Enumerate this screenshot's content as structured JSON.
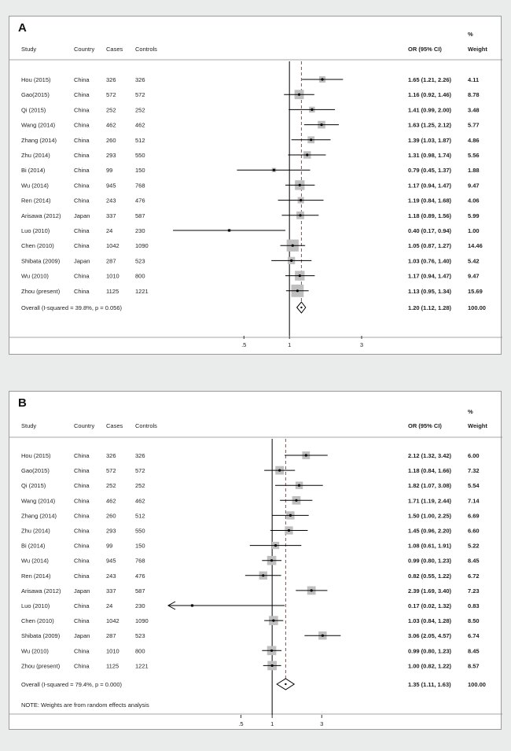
{
  "colors": {
    "box": "#bfbfbf",
    "line": "#000000",
    "null_line": "#000000",
    "pooled_line": "#c0392b",
    "text": "#222222"
  },
  "chart_data": [
    {
      "type": "forest",
      "panel_label": "A",
      "headers": {
        "study": "Study",
        "country": "Country",
        "cases": "Cases",
        "controls": "Controls",
        "or": "OR (95% CI)",
        "pct": "%",
        "weight": "Weight"
      },
      "x_scale": "log",
      "xlim": [
        0.16,
        4.4
      ],
      "ticks": [
        {
          "value": 0.5,
          "label": ".5"
        },
        {
          "value": 1,
          "label": "1"
        },
        {
          "value": 3,
          "label": "3"
        }
      ],
      "pooled_or": 1.2,
      "studies": [
        {
          "study": "Hou (2015)",
          "country": "China",
          "cases": "326",
          "controls": "326",
          "or": 1.65,
          "lo": 1.21,
          "hi": 2.26,
          "ci_text": "1.65 (1.21, 2.26)",
          "weight": "4.11"
        },
        {
          "study": "Gao(2015)",
          "country": "China",
          "cases": "572",
          "controls": "572",
          "or": 1.16,
          "lo": 0.92,
          "hi": 1.46,
          "ci_text": "1.16 (0.92, 1.46)",
          "weight": "8.78"
        },
        {
          "study": "Qi (2015)",
          "country": "China",
          "cases": "252",
          "controls": "252",
          "or": 1.41,
          "lo": 0.99,
          "hi": 2.0,
          "ci_text": "1.41 (0.99, 2.00)",
          "weight": "3.48"
        },
        {
          "study": "Wang (2014)",
          "country": "China",
          "cases": "462",
          "controls": "462",
          "or": 1.63,
          "lo": 1.25,
          "hi": 2.12,
          "ci_text": "1.63 (1.25, 2.12)",
          "weight": "5.77"
        },
        {
          "study": "Zhang (2014)",
          "country": "China",
          "cases": "260",
          "controls": "512",
          "or": 1.39,
          "lo": 1.03,
          "hi": 1.87,
          "ci_text": "1.39 (1.03, 1.87)",
          "weight": "4.86"
        },
        {
          "study": "Zhu (2014)",
          "country": "China",
          "cases": "293",
          "controls": "550",
          "or": 1.31,
          "lo": 0.98,
          "hi": 1.74,
          "ci_text": "1.31 (0.98, 1.74)",
          "weight": "5.56"
        },
        {
          "study": "Bi (2014)",
          "country": "China",
          "cases": "99",
          "controls": "150",
          "or": 0.79,
          "lo": 0.45,
          "hi": 1.37,
          "ci_text": "0.79 (0.45, 1.37)",
          "weight": "1.88"
        },
        {
          "study": "Wu (2014)",
          "country": "China",
          "cases": "945",
          "controls": "768",
          "or": 1.17,
          "lo": 0.94,
          "hi": 1.47,
          "ci_text": "1.17 (0.94, 1.47)",
          "weight": "9.47"
        },
        {
          "study": "Ren (2014)",
          "country": "China",
          "cases": "243",
          "controls": "476",
          "or": 1.19,
          "lo": 0.84,
          "hi": 1.68,
          "ci_text": "1.19 (0.84, 1.68)",
          "weight": "4.06"
        },
        {
          "study": "Arisawa (2012)",
          "country": "Japan",
          "cases": "337",
          "controls": "587",
          "or": 1.18,
          "lo": 0.89,
          "hi": 1.56,
          "ci_text": "1.18 (0.89, 1.56)",
          "weight": "5.99"
        },
        {
          "study": "Luo (2010)",
          "country": "China",
          "cases": "24",
          "controls": "230",
          "or": 0.4,
          "lo": 0.17,
          "hi": 0.94,
          "ci_text": "0.40 (0.17, 0.94)",
          "weight": "1.00"
        },
        {
          "study": "Chen (2010)",
          "country": "China",
          "cases": "1042",
          "controls": "1090",
          "or": 1.05,
          "lo": 0.87,
          "hi": 1.27,
          "ci_text": "1.05 (0.87, 1.27)",
          "weight": "14.46"
        },
        {
          "study": "Shibata (2009)",
          "country": "Japan",
          "cases": "287",
          "controls": "523",
          "or": 1.03,
          "lo": 0.76,
          "hi": 1.4,
          "ci_text": "1.03 (0.76, 1.40)",
          "weight": "5.42"
        },
        {
          "study": "Wu (2010)",
          "country": "China",
          "cases": "1010",
          "controls": "800",
          "or": 1.17,
          "lo": 0.94,
          "hi": 1.47,
          "ci_text": "1.17 (0.94, 1.47)",
          "weight": "9.47"
        },
        {
          "study": "Zhou (present)",
          "country": "China",
          "cases": "1125",
          "controls": "1221",
          "or": 1.13,
          "lo": 0.95,
          "hi": 1.34,
          "ci_text": "1.13 (0.95, 1.34)",
          "weight": "15.69"
        }
      ],
      "overall": {
        "label": "Overall  (I-squared = 39.8%, p = 0.056)",
        "or": 1.2,
        "lo": 1.12,
        "hi": 1.28,
        "ci_text": "1.20 (1.12, 1.28)",
        "weight": "100.00"
      },
      "note": ""
    },
    {
      "type": "forest",
      "panel_label": "B",
      "headers": {
        "study": "Study",
        "country": "Country",
        "cases": "Cases",
        "controls": "Controls",
        "or": "OR (95% CI)",
        "pct": "%",
        "weight": "Weight"
      },
      "x_scale": "log",
      "xlim": [
        0.1,
        5.5
      ],
      "ticks": [
        {
          "value": 0.5,
          "label": ".5"
        },
        {
          "value": 1,
          "label": "1"
        },
        {
          "value": 3,
          "label": "3"
        }
      ],
      "pooled_or": 1.35,
      "studies": [
        {
          "study": "Hou (2015)",
          "country": "China",
          "cases": "326",
          "controls": "326",
          "or": 2.12,
          "lo": 1.32,
          "hi": 3.42,
          "ci_text": "2.12 (1.32, 3.42)",
          "weight": "6.00"
        },
        {
          "study": "Gao(2015)",
          "country": "China",
          "cases": "572",
          "controls": "572",
          "or": 1.18,
          "lo": 0.84,
          "hi": 1.66,
          "ci_text": "1.18 (0.84, 1.66)",
          "weight": "7.32"
        },
        {
          "study": "Qi (2015)",
          "country": "China",
          "cases": "252",
          "controls": "252",
          "or": 1.82,
          "lo": 1.07,
          "hi": 3.08,
          "ci_text": "1.82 (1.07, 3.08)",
          "weight": "5.54"
        },
        {
          "study": "Wang (2014)",
          "country": "China",
          "cases": "462",
          "controls": "462",
          "or": 1.71,
          "lo": 1.19,
          "hi": 2.44,
          "ci_text": "1.71 (1.19, 2.44)",
          "weight": "7.14"
        },
        {
          "study": "Zhang (2014)",
          "country": "China",
          "cases": "260",
          "controls": "512",
          "or": 1.5,
          "lo": 1.0,
          "hi": 2.25,
          "ci_text": "1.50 (1.00, 2.25)",
          "weight": "6.69"
        },
        {
          "study": "Zhu (2014)",
          "country": "China",
          "cases": "293",
          "controls": "550",
          "or": 1.45,
          "lo": 0.96,
          "hi": 2.2,
          "ci_text": "1.45 (0.96, 2.20)",
          "weight": "6.60"
        },
        {
          "study": "Bi (2014)",
          "country": "China",
          "cases": "99",
          "controls": "150",
          "or": 1.08,
          "lo": 0.61,
          "hi": 1.91,
          "ci_text": "1.08 (0.61, 1.91)",
          "weight": "5.22"
        },
        {
          "study": "Wu (2014)",
          "country": "China",
          "cases": "945",
          "controls": "768",
          "or": 0.99,
          "lo": 0.8,
          "hi": 1.23,
          "ci_text": "0.99 (0.80, 1.23)",
          "weight": "8.45"
        },
        {
          "study": "Ren (2014)",
          "country": "China",
          "cases": "243",
          "controls": "476",
          "or": 0.82,
          "lo": 0.55,
          "hi": 1.22,
          "ci_text": "0.82 (0.55, 1.22)",
          "weight": "6.72"
        },
        {
          "study": "Arisawa (2012)",
          "country": "Japan",
          "cases": "337",
          "controls": "587",
          "or": 2.39,
          "lo": 1.69,
          "hi": 3.4,
          "ci_text": "2.39 (1.69, 3.40)",
          "weight": "7.23"
        },
        {
          "study": "Luo (2010)",
          "country": "China",
          "cases": "24",
          "controls": "230",
          "or": 0.17,
          "lo": 0.02,
          "hi": 1.32,
          "ci_text": "0.17 (0.02, 1.32)",
          "weight": "0.83"
        },
        {
          "study": "Chen (2010)",
          "country": "China",
          "cases": "1042",
          "controls": "1090",
          "or": 1.03,
          "lo": 0.84,
          "hi": 1.28,
          "ci_text": "1.03 (0.84, 1.28)",
          "weight": "8.50"
        },
        {
          "study": "Shibata (2009)",
          "country": "Japan",
          "cases": "287",
          "controls": "523",
          "or": 3.06,
          "lo": 2.05,
          "hi": 4.57,
          "ci_text": "3.06 (2.05, 4.57)",
          "weight": "6.74"
        },
        {
          "study": "Wu (2010)",
          "country": "China",
          "cases": "1010",
          "controls": "800",
          "or": 0.99,
          "lo": 0.8,
          "hi": 1.23,
          "ci_text": "0.99 (0.80, 1.23)",
          "weight": "8.45"
        },
        {
          "study": "Zhou (present)",
          "country": "China",
          "cases": "1125",
          "controls": "1221",
          "or": 1.0,
          "lo": 0.82,
          "hi": 1.22,
          "ci_text": "1.00 (0.82, 1.22)",
          "weight": "8.57"
        }
      ],
      "overall": {
        "label": "Overall  (I-squared = 79.4%, p = 0.000)",
        "or": 1.35,
        "lo": 1.11,
        "hi": 1.63,
        "ci_text": "1.35 (1.11, 1.63)",
        "weight": "100.00"
      },
      "note": "NOTE: Weights are from random effects analysis"
    }
  ]
}
